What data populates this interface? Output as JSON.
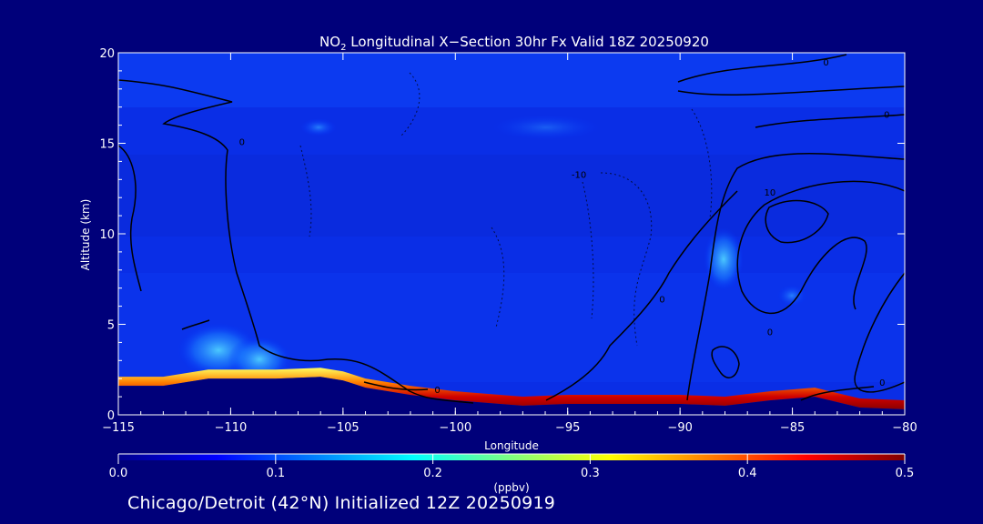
{
  "chart_data": {
    "type": "heatmap",
    "title_main": "NO",
    "title_sub": "2",
    "title_rest": " Longitudinal X−Section 30hr  Fx Valid 18Z 20250920",
    "xlabel": "Longitude",
    "ylabel": "Altitude (km)",
    "xlim": [
      -115,
      -80
    ],
    "ylim": [
      0,
      20
    ],
    "x_ticks": [
      -115,
      -110,
      -105,
      -100,
      -95,
      -90,
      -85,
      -80
    ],
    "x_tick_labels": [
      "−115",
      "−110",
      "−105",
      "−100",
      "−95",
      "−90",
      "−85",
      "−80"
    ],
    "y_ticks": [
      0,
      5,
      10,
      15,
      20
    ],
    "y_tick_labels": [
      "0",
      "5",
      "10",
      "15",
      "20"
    ],
    "colorbar": {
      "min": 0.0,
      "max": 0.5,
      "unit_label": "(ppbv)",
      "ticks": [
        0.0,
        0.1,
        0.2,
        0.3,
        0.4,
        0.5
      ],
      "tick_labels": [
        "0.0",
        "0.1",
        "0.2",
        "0.3",
        "0.4",
        "0.5"
      ],
      "colors": [
        "#00008f",
        "#0000ff",
        "#0080ff",
        "#00ffff",
        "#80ff80",
        "#ffff00",
        "#ff8000",
        "#ff0000",
        "#800000"
      ]
    },
    "terrain": [
      [
        -115,
        1.6
      ],
      [
        -113,
        1.6
      ],
      [
        -111,
        2.0
      ],
      [
        -108,
        2.0
      ],
      [
        -106,
        2.1
      ],
      [
        -105,
        1.9
      ],
      [
        -104,
        1.5
      ],
      [
        -102,
        1.1
      ],
      [
        -100,
        0.8
      ],
      [
        -97,
        0.5
      ],
      [
        -95,
        0.6
      ],
      [
        -90,
        0.6
      ],
      [
        -88,
        0.5
      ],
      [
        -86,
        0.8
      ],
      [
        -84,
        1.0
      ],
      [
        -82,
        0.4
      ],
      [
        -80,
        0.3
      ]
    ],
    "contour_labels": [
      {
        "text": "0",
        "lon": -109.5,
        "alt": 14.9
      },
      {
        "text": "0",
        "lon": -80.8,
        "alt": 16.4
      },
      {
        "text": "0",
        "lon": -83.5,
        "alt": 19.3
      },
      {
        "text": "10",
        "lon": -86.0,
        "alt": 12.1
      },
      {
        "text": "-10",
        "lon": -94.5,
        "alt": 13.1
      },
      {
        "text": "0",
        "lon": -90.8,
        "alt": 6.2
      },
      {
        "text": "0",
        "lon": -100.8,
        "alt": 1.2
      },
      {
        "text": "0",
        "lon": -86.0,
        "alt": 4.4
      },
      {
        "text": "0",
        "lon": -81.0,
        "alt": 1.6
      }
    ]
  },
  "footer": {
    "text": "Chicago/Detroit (42°N) Initialized 12Z 20250919"
  }
}
